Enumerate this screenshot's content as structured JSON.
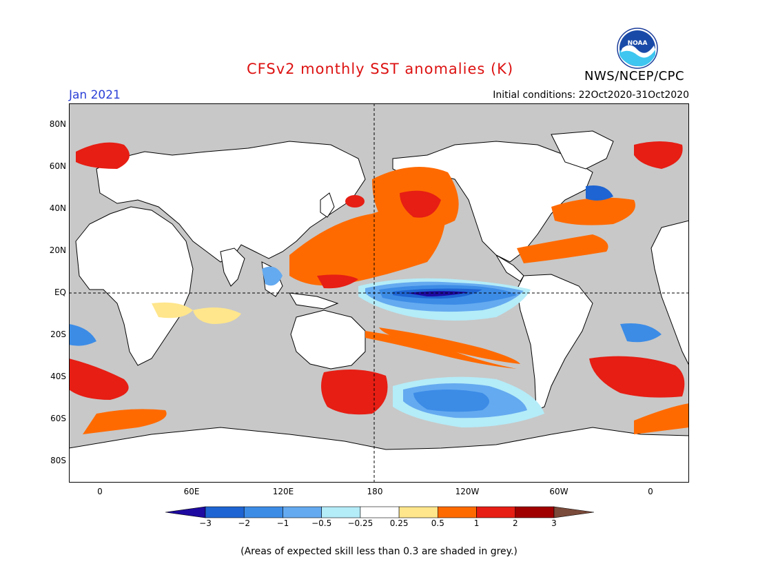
{
  "header": {
    "title": "CFSv2 monthly SST anomalies (K)",
    "agency": "NWS/NCEP/CPC",
    "month": "Jan 2021",
    "initial_conditions": "Initial conditions: 22Oct2020-31Oct2020",
    "logo_text": "NOAA"
  },
  "map": {
    "lat_labels": [
      "80N",
      "60N",
      "40N",
      "20N",
      "EQ",
      "20S",
      "40S",
      "60S",
      "80S"
    ],
    "lon_labels": [
      "0",
      "60E",
      "120E",
      "180",
      "120W",
      "60W",
      "0"
    ]
  },
  "colorbar": {
    "labels": [
      "-3",
      "-2",
      "-1",
      "-0.5",
      "-0.25",
      "0.25",
      "0.5",
      "1",
      "2",
      "3"
    ],
    "colors": [
      "#1e0aa0",
      "#1e64d2",
      "#3c8ce6",
      "#64aaf0",
      "#b4ecf8",
      "#ffffff",
      "#ffe68c",
      "#ff6a00",
      "#e61e14",
      "#a00000",
      "#7a4a3a"
    ]
  },
  "footnote": "(Areas of expected skill less than 0.3 are shaded in grey.)"
}
